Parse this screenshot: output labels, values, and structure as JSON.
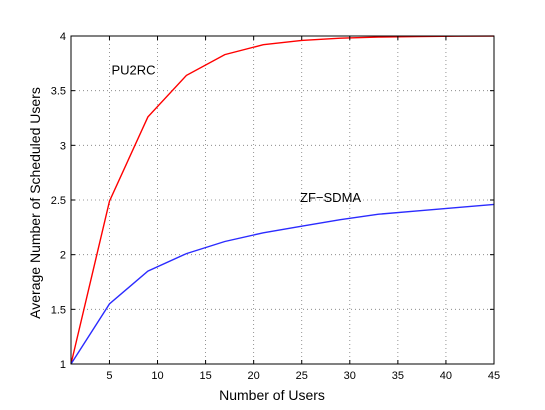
{
  "chart_data": {
    "type": "line",
    "title": "",
    "xlabel": "Number of Users",
    "ylabel": "Average Number of Scheduled Users",
    "xlim": [
      1,
      45
    ],
    "ylim": [
      1,
      4
    ],
    "xticks": [
      5,
      10,
      15,
      20,
      25,
      30,
      35,
      40,
      45
    ],
    "yticks": [
      1,
      1.5,
      2,
      2.5,
      3,
      3.5,
      4
    ],
    "xtick_labels": [
      "5",
      "10",
      "15",
      "20",
      "25",
      "30",
      "35",
      "40",
      "45"
    ],
    "ytick_labels": [
      "1",
      "1.5",
      "2",
      "2.5",
      "3",
      "3.5",
      "4"
    ],
    "grid": true,
    "series": [
      {
        "color": "#ff0000",
        "x": [
          1,
          5,
          9,
          13,
          17,
          21,
          25,
          29,
          33,
          37,
          41,
          45
        ],
        "y": [
          1.0,
          2.49,
          3.26,
          3.64,
          3.83,
          3.92,
          3.96,
          3.98,
          3.99,
          3.995,
          3.998,
          3.999
        ]
      },
      {
        "color": "#2b2bff",
        "x": [
          1,
          5,
          9,
          13,
          17,
          21,
          25,
          29,
          33,
          37,
          41,
          45
        ],
        "y": [
          1.0,
          1.55,
          1.85,
          2.01,
          2.12,
          2.2,
          2.26,
          2.32,
          2.37,
          2.4,
          2.43,
          2.46
        ]
      }
    ],
    "annotations": [
      {
        "text": "PU2RC",
        "x": 7.5,
        "y": 3.65
      },
      {
        "text": "ZF−SDMA",
        "x": 28,
        "y": 2.48
      }
    ]
  }
}
